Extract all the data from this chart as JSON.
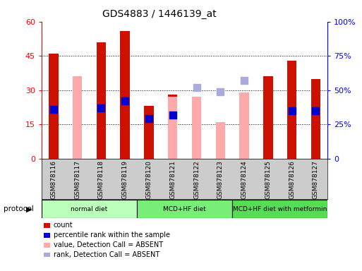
{
  "title": "GDS4883 / 1446139_at",
  "samples": [
    "GSM878116",
    "GSM878117",
    "GSM878118",
    "GSM878119",
    "GSM878120",
    "GSM878121",
    "GSM878122",
    "GSM878123",
    "GSM878124",
    "GSM878125",
    "GSM878126",
    "GSM878127"
  ],
  "count_values": [
    46,
    null,
    51,
    56,
    23,
    28,
    null,
    null,
    null,
    36,
    43,
    35
  ],
  "pink_values": [
    null,
    36,
    null,
    null,
    null,
    27,
    27,
    16,
    29,
    null,
    null,
    null
  ],
  "blue_dot_values": [
    36,
    null,
    37,
    42,
    29,
    32,
    null,
    null,
    null,
    null,
    35,
    35
  ],
  "light_blue_dot_values": [
    null,
    null,
    null,
    null,
    null,
    null,
    52,
    49,
    57,
    null,
    null,
    null
  ],
  "protocols": [
    {
      "label": "normal diet",
      "start": 0,
      "end": 4,
      "color": "#bbffbb"
    },
    {
      "label": "MCD+HF diet",
      "start": 4,
      "end": 8,
      "color": "#77ee77"
    },
    {
      "label": "MCD+HF diet with metformin",
      "start": 8,
      "end": 12,
      "color": "#55dd55"
    }
  ],
  "ylim_left": [
    0,
    60
  ],
  "ylim_right": [
    0,
    100
  ],
  "yticks_left": [
    0,
    15,
    30,
    45,
    60
  ],
  "yticks_right": [
    0,
    25,
    50,
    75,
    100
  ],
  "ytick_labels_left": [
    "0",
    "15",
    "30",
    "45",
    "60"
  ],
  "ytick_labels_right": [
    "0",
    "25%",
    "50%",
    "75%",
    "100%"
  ],
  "bar_color": "#cc1100",
  "pink_color": "#ffaaaa",
  "blue_dot_color": "#0000cc",
  "light_blue_color": "#aaaadd",
  "bar_width": 0.4,
  "dot_size": 55,
  "legend_items": [
    {
      "label": "count",
      "color": "#cc1100"
    },
    {
      "label": "percentile rank within the sample",
      "color": "#0000cc"
    },
    {
      "label": "value, Detection Call = ABSENT",
      "color": "#ffaaaa"
    },
    {
      "label": "rank, Detection Call = ABSENT",
      "color": "#aaaadd"
    }
  ],
  "protocol_label": "protocol",
  "gridline_values": [
    15,
    30,
    45
  ],
  "bg_color": "#ffffff"
}
